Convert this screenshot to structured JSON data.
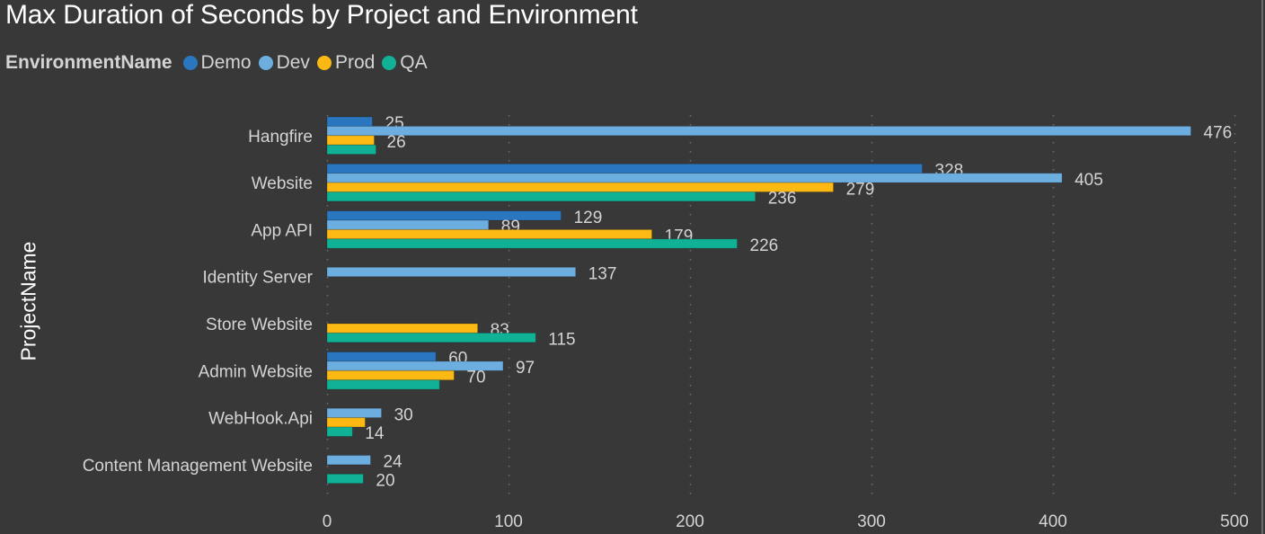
{
  "chart_data": {
    "type": "bar",
    "orientation": "horizontal",
    "title": "Max Duration of Seconds by Project and Environment",
    "xlabel": "",
    "ylabel": "ProjectName",
    "xlim": [
      0,
      500
    ],
    "xticks": [
      0,
      100,
      200,
      300,
      400,
      500
    ],
    "grid": "vertical-dotted",
    "legend": {
      "title": "EnvironmentName",
      "placement": "top-left",
      "entries": [
        "Demo",
        "Dev",
        "Prod",
        "QA"
      ]
    },
    "colors": {
      "Demo": "#2a77bf",
      "Dev": "#6daee0",
      "Prod": "#fdb913",
      "QA": "#10b195"
    },
    "categories": [
      "Hangfire",
      "Website",
      "App API",
      "Identity Server",
      "Store Website",
      "Admin Website",
      "WebHook.Api",
      "Content Management Website"
    ],
    "series": [
      {
        "name": "Demo",
        "values": [
          25,
          328,
          129,
          null,
          null,
          60,
          null,
          null
        ],
        "labels": [
          true,
          true,
          true,
          false,
          false,
          true,
          false,
          false
        ]
      },
      {
        "name": "Dev",
        "values": [
          476,
          405,
          89,
          137,
          null,
          97,
          30,
          24
        ],
        "labels": [
          true,
          true,
          true,
          true,
          false,
          true,
          true,
          true
        ]
      },
      {
        "name": "Prod",
        "values": [
          26,
          279,
          179,
          null,
          83,
          70,
          21,
          null
        ],
        "labels": [
          true,
          true,
          true,
          false,
          true,
          true,
          false,
          false
        ]
      },
      {
        "name": "QA",
        "values": [
          27,
          236,
          226,
          null,
          115,
          62,
          14,
          20
        ],
        "labels": [
          false,
          true,
          true,
          false,
          true,
          false,
          true,
          true
        ]
      }
    ]
  }
}
